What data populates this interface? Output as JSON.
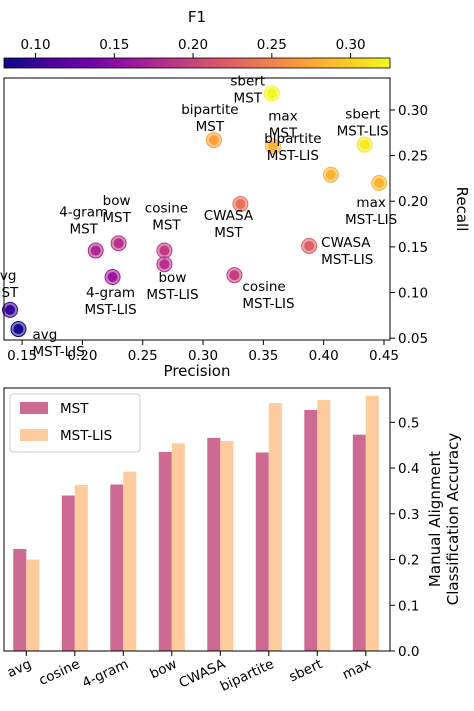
{
  "chart_data": [
    {
      "type": "scatter",
      "xlabel": "Precision",
      "ylabel": "Recall",
      "xlim": [
        0.135,
        0.455
      ],
      "ylim": [
        0.048,
        0.335
      ],
      "xticks": [
        0.15,
        0.2,
        0.25,
        0.3,
        0.35,
        0.4,
        0.45
      ],
      "xtick_labels": [
        "0.15",
        "0.20",
        "0.25",
        "0.30",
        "0.35",
        "0.40",
        "0.45"
      ],
      "yticks": [
        0.05,
        0.1,
        0.15,
        0.2,
        0.25,
        0.3
      ],
      "ytick_labels": [
        "0.05",
        "0.10",
        "0.15",
        "0.20",
        "0.25",
        "0.30"
      ],
      "yaxis_side": "right",
      "colorbar": {
        "label": "F1",
        "colormap": "plasma",
        "range": [
          0.08,
          0.325
        ],
        "ticks": [
          0.1,
          0.15,
          0.2,
          0.25,
          0.3
        ],
        "tick_labels": [
          "0.10",
          "0.15",
          "0.20",
          "0.25",
          "0.30"
        ],
        "colors": [
          "#0d0887",
          "#46039f",
          "#7201a8",
          "#9c179e",
          "#bd3786",
          "#d8576b",
          "#ed7953",
          "#fb9f3a",
          "#fdca26",
          "#f0f921"
        ]
      },
      "points": [
        {
          "label": [
            "avg",
            "MST"
          ],
          "x": 0.14,
          "y": 0.081,
          "f1": 0.1
        },
        {
          "label": [
            "avg",
            "MST-LIS"
          ],
          "x": 0.147,
          "y": 0.06,
          "f1": 0.083
        },
        {
          "label": [
            "4-gram",
            "MST"
          ],
          "x": 0.211,
          "y": 0.146,
          "f1": 0.175
        },
        {
          "label": [
            "bow",
            "MST"
          ],
          "x": 0.23,
          "y": 0.154,
          "f1": 0.184
        },
        {
          "label": [
            "4-gram",
            "MST-LIS"
          ],
          "x": 0.225,
          "y": 0.117,
          "f1": 0.162
        },
        {
          "label": [
            "cosine",
            "MST"
          ],
          "x": 0.268,
          "y": 0.146,
          "f1": 0.192
        },
        {
          "label": [
            "bow",
            "MST-LIS"
          ],
          "x": 0.268,
          "y": 0.131,
          "f1": 0.184
        },
        {
          "label": [
            "cosine",
            "MST-LIS"
          ],
          "x": 0.326,
          "y": 0.119,
          "f1": 0.196
        },
        {
          "label": [
            "CWASA",
            "MST"
          ],
          "x": 0.331,
          "y": 0.197,
          "f1": 0.236
        },
        {
          "label": [
            "CWASA",
            "MST-LIS"
          ],
          "x": 0.388,
          "y": 0.151,
          "f1": 0.223
        },
        {
          "label": [
            "bipartite",
            "MST"
          ],
          "x": 0.309,
          "y": 0.267,
          "f1": 0.272
        },
        {
          "label": [
            "sbert",
            "MST"
          ],
          "x": 0.357,
          "y": 0.318,
          "f1": 0.324
        },
        {
          "label": [
            "max",
            "MST"
          ],
          "x": 0.358,
          "y": 0.26,
          "f1": 0.283
        },
        {
          "label": [
            "sbert",
            "MST-LIS"
          ],
          "x": 0.434,
          "y": 0.262,
          "f1": 0.316
        },
        {
          "label": [
            "bipartite",
            "MST-LIS"
          ],
          "x": 0.406,
          "y": 0.229,
          "f1": 0.283
        },
        {
          "label": [
            "max",
            "MST-LIS"
          ],
          "x": 0.446,
          "y": 0.22,
          "f1": 0.284
        }
      ]
    },
    {
      "type": "bar",
      "categories": [
        "avg",
        "cosine",
        "4-gram",
        "bow",
        "CWASA",
        "bipartite",
        "sbert",
        "max"
      ],
      "series": [
        {
          "name": "MST",
          "color": "#cc6a92",
          "values": [
            0.223,
            0.34,
            0.364,
            0.435,
            0.466,
            0.434,
            0.527,
            0.473
          ]
        },
        {
          "name": "MST-LIS",
          "color": "#fdcb9c",
          "values": [
            0.2,
            0.363,
            0.392,
            0.454,
            0.459,
            0.542,
            0.549,
            0.558
          ]
        }
      ],
      "ylabel": [
        "Manual Alignment",
        "Classification Accuracy"
      ],
      "ylim": [
        0,
        0.575
      ],
      "yticks": [
        0,
        0.1,
        0.2,
        0.3,
        0.4,
        0.5
      ],
      "ytick_labels": [
        "0.0",
        "0.1",
        "0.2",
        "0.3",
        "0.4",
        "0.5"
      ],
      "yaxis_side": "right",
      "legend_position": "top-left"
    }
  ]
}
